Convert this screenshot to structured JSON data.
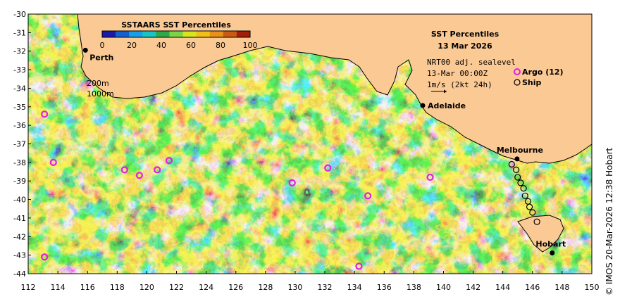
{
  "title": "SST Percentiles",
  "date": "13 Mar 2026",
  "colorbar": {
    "title": "SSTAARS SST Percentiles",
    "ticks": [
      0,
      20,
      40,
      60,
      80,
      100
    ],
    "colors": [
      "#1a1aa8",
      "#1560d0",
      "#1a9ee6",
      "#19c4c4",
      "#2ea84a",
      "#7ad44a",
      "#d4e61e",
      "#f0c018",
      "#e8901a",
      "#c85a14",
      "#a01e0a"
    ]
  },
  "info": {
    "line1": "NRT00 adj. sealevel",
    "line2": "13-Mar 00:00Z",
    "line3": "1m/s (2kt 24h)"
  },
  "legend": {
    "argo_label": "Argo (12)",
    "ship_label": "Ship",
    "argo_color": "#e020e0"
  },
  "contours": {
    "label_200": "200m",
    "label_1000": "1000m"
  },
  "axes": {
    "x_ticks": [
      "112",
      "114",
      "116",
      "118",
      "120",
      "122",
      "124",
      "126",
      "128",
      "130",
      "132",
      "134",
      "136",
      "138",
      "140",
      "142",
      "144",
      "146",
      "148",
      "150"
    ],
    "y_ticks": [
      "-30",
      "-31",
      "-32",
      "-33",
      "-34",
      "-35",
      "-36",
      "-37",
      "-38",
      "-39",
      "-40",
      "-41",
      "-42",
      "-43",
      "-44"
    ]
  },
  "cities": [
    {
      "name": "Perth",
      "lon": 115.86,
      "lat": -31.95
    },
    {
      "name": "Adelaide",
      "lon": 138.6,
      "lat": -34.93
    },
    {
      "name": "Melbourne",
      "lon": 144.96,
      "lat": -37.81
    },
    {
      "name": "Hobart",
      "lon": 147.33,
      "lat": -42.88
    }
  ],
  "argo_floats": [
    {
      "lon": 113.1,
      "lat": -35.4
    },
    {
      "lon": 113.7,
      "lat": -38.0
    },
    {
      "lon": 113.1,
      "lat": -43.1
    },
    {
      "lon": 118.5,
      "lat": -38.4
    },
    {
      "lon": 119.5,
      "lat": -38.7
    },
    {
      "lon": 120.7,
      "lat": -38.4
    },
    {
      "lon": 121.5,
      "lat": -37.9
    },
    {
      "lon": 129.8,
      "lat": -39.1
    },
    {
      "lon": 132.2,
      "lat": -38.3
    },
    {
      "lon": 134.9,
      "lat": -39.8
    },
    {
      "lon": 134.3,
      "lat": -43.6
    },
    {
      "lon": 139.1,
      "lat": -38.8
    }
  ],
  "ship_track": [
    {
      "lon": 144.6,
      "lat": -38.1
    },
    {
      "lon": 144.9,
      "lat": -38.4
    },
    {
      "lon": 145.0,
      "lat": -38.8
    },
    {
      "lon": 145.2,
      "lat": -39.1
    },
    {
      "lon": 145.4,
      "lat": -39.4
    },
    {
      "lon": 145.5,
      "lat": -39.8
    },
    {
      "lon": 145.7,
      "lat": -40.1
    },
    {
      "lon": 145.8,
      "lat": -40.4
    },
    {
      "lon": 146.0,
      "lat": -40.7
    },
    {
      "lon": 146.3,
      "lat": -41.2
    }
  ],
  "credit": "© IMOS 20-Mar-2026 12:38 Hobart"
}
